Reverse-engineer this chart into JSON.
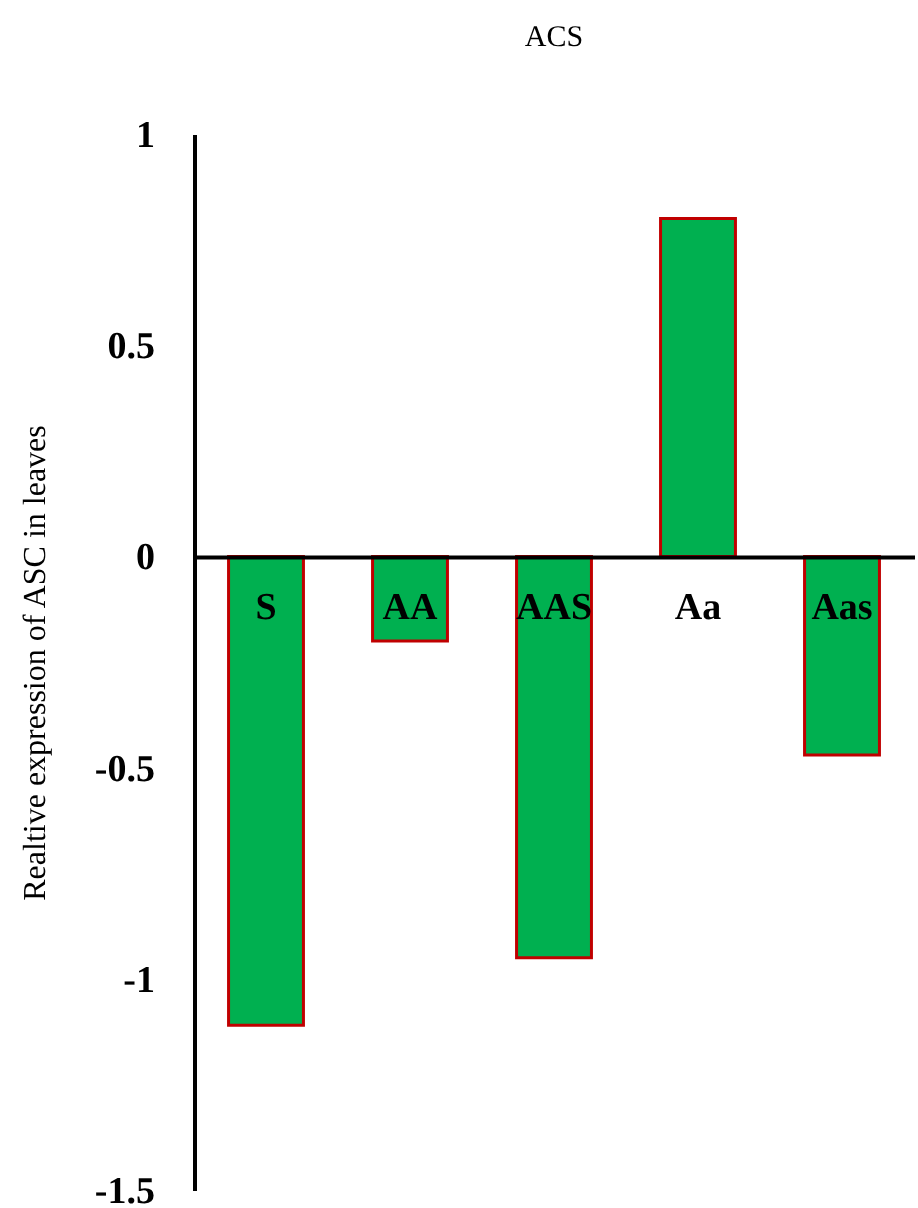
{
  "chart_data": {
    "type": "bar",
    "title": "ACS",
    "ylabel": "Realtive expression of ASC in leaves",
    "categories": [
      "S",
      "AA",
      "AAS",
      "Aa",
      "Aas"
    ],
    "values": [
      -1.11,
      -0.2,
      -0.95,
      0.8,
      -0.47
    ],
    "color": "#00b050",
    "ylim": [
      -1.5,
      1
    ],
    "yticks": [
      -1.5,
      -1,
      -0.5,
      0,
      0.5,
      1
    ],
    "grid": false
  }
}
